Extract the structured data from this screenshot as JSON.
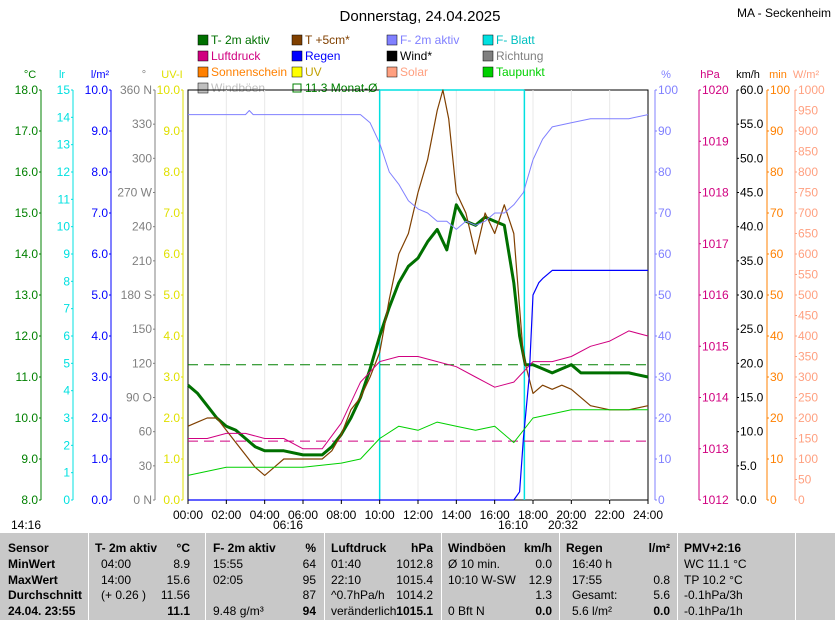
{
  "title": "Donnerstag, 24.04.2025",
  "station": "MA - Seckenheim",
  "colors": {
    "temp": "#007000",
    "temp5": "#804000",
    "hum": "#8080ff",
    "leaf": "#00e0e0",
    "pressure": "#d00080",
    "rain": "#0000ff",
    "wind": "#000000",
    "dir": "#808080",
    "sun": "#ff8000",
    "uv": "#ffff00",
    "solar": "#ffa080",
    "dew": "#00d000",
    "gust": "#c0c0c0",
    "avg": "#008000"
  },
  "legend": [
    {
      "label": "T- 2m aktiv",
      "color": "#007000",
      "style": "box"
    },
    {
      "label": "T +5cm*",
      "color": "#804000",
      "style": "box"
    },
    {
      "label": "F- 2m aktiv",
      "color": "#8080ff",
      "style": "box"
    },
    {
      "label": "F- Blatt",
      "color": "#00e0e0",
      "style": "box"
    },
    {
      "label": "Luftdruck",
      "color": "#d00080",
      "style": "box"
    },
    {
      "label": "Regen",
      "color": "#0000ff",
      "style": "box"
    },
    {
      "label": "Wind*",
      "color": "#000000",
      "style": "box"
    },
    {
      "label": "Richtung",
      "color": "#808080",
      "style": "box"
    },
    {
      "label": "Sonnenschein",
      "color": "#ff8000",
      "style": "box"
    },
    {
      "label": "UV",
      "color": "#ffff00",
      "style": "box"
    },
    {
      "label": "Solar",
      "color": "#ffa080",
      "style": "box"
    },
    {
      "label": "Taupunkt",
      "color": "#00d000",
      "style": "box"
    },
    {
      "label": "Windböen",
      "color": "#c0c0c0",
      "style": "box"
    },
    {
      "label": "11.3 Monat-Ø",
      "color": "#008000",
      "style": "outline"
    }
  ],
  "events": {
    "sunrise": "06:16",
    "moonset": "16:10",
    "sunset": "20:32",
    "cursor_time": "14:16"
  },
  "chart_data": {
    "type": "line",
    "title": "Donnerstag, 24.04.2025",
    "x_ticks": [
      "00:00",
      "02:00",
      "04:00",
      "06:00",
      "08:00",
      "10:00",
      "12:00",
      "14:00",
      "16:00",
      "18:00",
      "20:00",
      "22:00",
      "24:00"
    ],
    "x_range_hours": [
      0,
      24
    ],
    "axes": [
      {
        "unit": "°C",
        "color": "#008000",
        "side": "left",
        "range": [
          8,
          18
        ],
        "ticks": [
          "18.0",
          "17.0",
          "16.0",
          "15.0",
          "14.0",
          "13.0",
          "12.0",
          "11.0",
          "10.0",
          "9.0",
          "8.0"
        ]
      },
      {
        "unit": "lr",
        "color": "#00e0e0",
        "side": "left",
        "range": [
          0,
          15
        ],
        "ticks": [
          "15",
          "14",
          "13",
          "12",
          "11",
          "10",
          "9",
          "8",
          "7",
          "6",
          "5",
          "4",
          "3",
          "2",
          "1",
          "0"
        ]
      },
      {
        "unit": "l/m²",
        "color": "#0000ff",
        "side": "left",
        "range": [
          0,
          10
        ],
        "ticks": [
          "10.0",
          "9.0",
          "8.0",
          "7.0",
          "6.0",
          "5.0",
          "4.0",
          "3.0",
          "2.0",
          "1.0",
          "0.0"
        ]
      },
      {
        "unit": "°",
        "color": "#808080",
        "side": "left",
        "range": [
          0,
          360
        ],
        "ticks": [
          "360 N",
          "330",
          "300",
          "270 W",
          "240",
          "210",
          "180 S",
          "150",
          "120",
          "90 O",
          "60",
          "30",
          "0 N"
        ]
      },
      {
        "unit": "UV-I",
        "color": "#e0e000",
        "side": "left",
        "range": [
          0,
          10
        ],
        "ticks": [
          "10.0",
          "9.0",
          "8.0",
          "7.0",
          "6.0",
          "5.0",
          "4.0",
          "3.0",
          "2.0",
          "1.0",
          "0.0"
        ]
      },
      {
        "unit": "%",
        "color": "#8080ff",
        "side": "right",
        "range": [
          0,
          100
        ],
        "ticks": [
          "100",
          "90",
          "80",
          "70",
          "60",
          "50",
          "40",
          "30",
          "20",
          "10",
          "0"
        ]
      },
      {
        "unit": "hPa",
        "color": "#d00080",
        "side": "right",
        "range": [
          1012,
          1020
        ],
        "ticks": [
          "1020",
          "1019",
          "1018",
          "1017",
          "1016",
          "1015",
          "1014",
          "1013",
          "1012"
        ]
      },
      {
        "unit": "km/h",
        "color": "#000000",
        "side": "right",
        "range": [
          0,
          60
        ],
        "ticks": [
          "60.0",
          "55.0",
          "50.0",
          "45.0",
          "40.0",
          "35.0",
          "30.0",
          "25.0",
          "20.0",
          "15.0",
          "10.0",
          "5.0",
          "0.0"
        ]
      },
      {
        "unit": "min",
        "color": "#ff8000",
        "side": "right",
        "range": [
          0,
          100
        ],
        "ticks": [
          "100",
          "90",
          "80",
          "70",
          "60",
          "50",
          "40",
          "30",
          "20",
          "10",
          "0"
        ]
      },
      {
        "unit": "W/m²",
        "color": "#ffa080",
        "side": "right",
        "range": [
          0,
          1000
        ],
        "ticks": [
          "1000",
          "950",
          "900",
          "850",
          "800",
          "750",
          "700",
          "650",
          "600",
          "550",
          "500",
          "450",
          "400",
          "350",
          "300",
          "250",
          "200",
          "150",
          "100",
          "50",
          "0"
        ]
      }
    ],
    "series": [
      {
        "name": "T- 2m aktiv",
        "unit": "°C",
        "points": [
          [
            0,
            10.8
          ],
          [
            0.5,
            10.6
          ],
          [
            1,
            10.3
          ],
          [
            1.5,
            10.0
          ],
          [
            2,
            9.8
          ],
          [
            2.5,
            9.7
          ],
          [
            3,
            9.5
          ],
          [
            3.5,
            9.3
          ],
          [
            4,
            9.2
          ],
          [
            5,
            9.2
          ],
          [
            6,
            9.1
          ],
          [
            7,
            9.1
          ],
          [
            7.5,
            9.3
          ],
          [
            8,
            9.6
          ],
          [
            8.5,
            10.0
          ],
          [
            9,
            10.5
          ],
          [
            9.5,
            11.2
          ],
          [
            10,
            12.0
          ],
          [
            10.5,
            12.7
          ],
          [
            11,
            13.3
          ],
          [
            11.5,
            13.7
          ],
          [
            12,
            13.9
          ],
          [
            12.5,
            14.3
          ],
          [
            13,
            14.6
          ],
          [
            13.5,
            14.1
          ],
          [
            14,
            15.2
          ],
          [
            14.5,
            14.8
          ],
          [
            15,
            14.7
          ],
          [
            15.5,
            14.9
          ],
          [
            16,
            14.8
          ],
          [
            16.5,
            14.7
          ],
          [
            17,
            13.3
          ],
          [
            17.3,
            12.0
          ],
          [
            17.6,
            11.3
          ],
          [
            18,
            11.3
          ],
          [
            18.5,
            11.2
          ],
          [
            19,
            11.1
          ],
          [
            19.5,
            11.2
          ],
          [
            20,
            11.3
          ],
          [
            20.5,
            11.1
          ],
          [
            21,
            11.1
          ],
          [
            22,
            11.1
          ],
          [
            23,
            11.1
          ],
          [
            24,
            11.0
          ]
        ]
      },
      {
        "name": "T +5cm*",
        "unit": "°C",
        "points": [
          [
            0,
            9.8
          ],
          [
            0.5,
            9.9
          ],
          [
            1,
            10.0
          ],
          [
            1.5,
            10.0
          ],
          [
            2,
            9.7
          ],
          [
            2.5,
            9.4
          ],
          [
            3,
            9.1
          ],
          [
            3.5,
            8.8
          ],
          [
            4,
            8.6
          ],
          [
            4.5,
            8.8
          ],
          [
            5,
            9.0
          ],
          [
            5.5,
            9.0
          ],
          [
            6,
            9.0
          ],
          [
            7,
            9.0
          ],
          [
            7.5,
            9.2
          ],
          [
            8,
            9.6
          ],
          [
            8.5,
            10.2
          ],
          [
            9,
            10.5
          ],
          [
            9.5,
            11.0
          ],
          [
            10,
            11.6
          ],
          [
            10.5,
            12.9
          ],
          [
            11,
            14.0
          ],
          [
            11.5,
            14.5
          ],
          [
            12,
            15.5
          ],
          [
            12.5,
            16.3
          ],
          [
            13,
            17.5
          ],
          [
            13.3,
            18.0
          ],
          [
            13.6,
            17.3
          ],
          [
            14,
            15.5
          ],
          [
            14.5,
            15.0
          ],
          [
            15,
            14.0
          ],
          [
            15.5,
            15.0
          ],
          [
            16,
            14.5
          ],
          [
            16.5,
            15.2
          ],
          [
            17,
            14.5
          ],
          [
            17.5,
            11.5
          ],
          [
            18,
            10.6
          ],
          [
            18.5,
            10.8
          ],
          [
            19,
            10.7
          ],
          [
            19.5,
            10.8
          ],
          [
            20,
            10.7
          ],
          [
            21,
            10.3
          ],
          [
            22,
            10.2
          ],
          [
            23,
            10.2
          ],
          [
            24,
            10.3
          ]
        ]
      },
      {
        "name": "F- 2m aktiv",
        "unit": "%",
        "points": [
          [
            0,
            94
          ],
          [
            2,
            94
          ],
          [
            3,
            94
          ],
          [
            3.2,
            95
          ],
          [
            3.4,
            94
          ],
          [
            5,
            94
          ],
          [
            7,
            94
          ],
          [
            8,
            94
          ],
          [
            9,
            94
          ],
          [
            9.5,
            92
          ],
          [
            10,
            87
          ],
          [
            10.5,
            80
          ],
          [
            11,
            77
          ],
          [
            11.5,
            73
          ],
          [
            12,
            71
          ],
          [
            12.5,
            70
          ],
          [
            13,
            68
          ],
          [
            13.5,
            68
          ],
          [
            14,
            66
          ],
          [
            14.5,
            68
          ],
          [
            15,
            67
          ],
          [
            15.5,
            68
          ],
          [
            16,
            70
          ],
          [
            16.5,
            70
          ],
          [
            17,
            72
          ],
          [
            17.5,
            75
          ],
          [
            18,
            83
          ],
          [
            18.5,
            88
          ],
          [
            19,
            91
          ],
          [
            20,
            92
          ],
          [
            21,
            93
          ],
          [
            22,
            93
          ],
          [
            23,
            93
          ],
          [
            24,
            94
          ]
        ]
      },
      {
        "name": "Luftdruck",
        "unit": "hPa",
        "points": [
          [
            0,
            1013.2
          ],
          [
            1,
            1013.2
          ],
          [
            2,
            1013.3
          ],
          [
            3,
            1013.3
          ],
          [
            4,
            1013.2
          ],
          [
            5,
            1013.2
          ],
          [
            6,
            1013.0
          ],
          [
            7,
            1013.0
          ],
          [
            8,
            1013.5
          ],
          [
            9,
            1014.3
          ],
          [
            10,
            1014.7
          ],
          [
            11,
            1014.8
          ],
          [
            12,
            1014.8
          ],
          [
            13,
            1014.7
          ],
          [
            14,
            1014.6
          ],
          [
            15,
            1014.4
          ],
          [
            16,
            1014.2
          ],
          [
            17,
            1014.3
          ],
          [
            18,
            1014.7
          ],
          [
            19,
            1014.7
          ],
          [
            20,
            1014.8
          ],
          [
            21,
            1015.0
          ],
          [
            22,
            1015.1
          ],
          [
            23,
            1015.3
          ],
          [
            24,
            1015.2
          ]
        ]
      },
      {
        "name": "Regen",
        "unit": "l/m²",
        "points": [
          [
            0,
            0
          ],
          [
            17,
            0
          ],
          [
            17.3,
            0.2
          ],
          [
            17.5,
            1.5
          ],
          [
            17.8,
            3.0
          ],
          [
            18,
            5.0
          ],
          [
            18.3,
            5.3
          ],
          [
            18.5,
            5.4
          ],
          [
            19,
            5.6
          ],
          [
            24,
            5.6
          ]
        ]
      },
      {
        "name": "Taupunkt",
        "unit": "°C",
        "points": [
          [
            0,
            8.6
          ],
          [
            2,
            8.8
          ],
          [
            4,
            8.8
          ],
          [
            6,
            8.8
          ],
          [
            8,
            8.9
          ],
          [
            9,
            9.0
          ],
          [
            10,
            9.5
          ],
          [
            11,
            9.8
          ],
          [
            12,
            9.7
          ],
          [
            13,
            9.9
          ],
          [
            14,
            9.8
          ],
          [
            15,
            9.7
          ],
          [
            16,
            9.8
          ],
          [
            17,
            9.4
          ],
          [
            18,
            10.0
          ],
          [
            19,
            10.1
          ],
          [
            20,
            10.2
          ],
          [
            21,
            10.2
          ],
          [
            22,
            10.2
          ],
          [
            24,
            10.2
          ]
        ]
      }
    ],
    "monthly_average": 11.3
  },
  "table": {
    "headers": [
      {
        "name": "Sensor",
        "unit": ""
      },
      {
        "name": "T- 2m aktiv",
        "unit": "°C"
      },
      {
        "name": "F- 2m aktiv",
        "unit": "%"
      },
      {
        "name": "Luftdruck",
        "unit": "hPa"
      },
      {
        "name": "Windböen",
        "unit": "km/h"
      },
      {
        "name": "Regen",
        "unit": "l/m²"
      },
      {
        "name": "PMV+2:16",
        "unit": ""
      }
    ],
    "rows": [
      {
        "label": "MinWert",
        "cells": [
          [
            "04:00",
            "8.9"
          ],
          [
            "15:55",
            "64"
          ],
          [
            "01:40",
            "1012.8"
          ],
          [
            "Ø 10 min.",
            "0.0"
          ],
          [
            "16:40 h",
            ""
          ],
          [
            "WC 11.1 °C",
            ""
          ]
        ]
      },
      {
        "label": "MaxWert",
        "cells": [
          [
            "14:00",
            "15.6"
          ],
          [
            "02:05",
            "95"
          ],
          [
            "22:10",
            "1015.4"
          ],
          [
            "10:10  W-SW",
            "12.9"
          ],
          [
            "17:55",
            "0.8"
          ],
          [
            "TP 10.2 °C",
            ""
          ]
        ]
      },
      {
        "label": "Durchschnitt",
        "cells": [
          [
            "(+ 0.26 )",
            "11.56"
          ],
          [
            "",
            "87"
          ],
          [
            "^0.7hPa/h",
            "1014.2"
          ],
          [
            "",
            "1.3"
          ],
          [
            "Gesamt:",
            "5.6"
          ],
          [
            "-0.1hPa/3h",
            ""
          ]
        ]
      },
      {
        "label": "24.04.  23:55",
        "cells": [
          [
            "",
            "11.1"
          ],
          [
            "9.48 g/m³",
            "94"
          ],
          [
            "veränderlich",
            "1015.1"
          ],
          [
            "0 Bft N",
            "0.0"
          ],
          [
            "5.6 l/m²",
            "0.0"
          ],
          [
            "-0.1hPa/1h",
            ""
          ]
        ]
      }
    ]
  }
}
